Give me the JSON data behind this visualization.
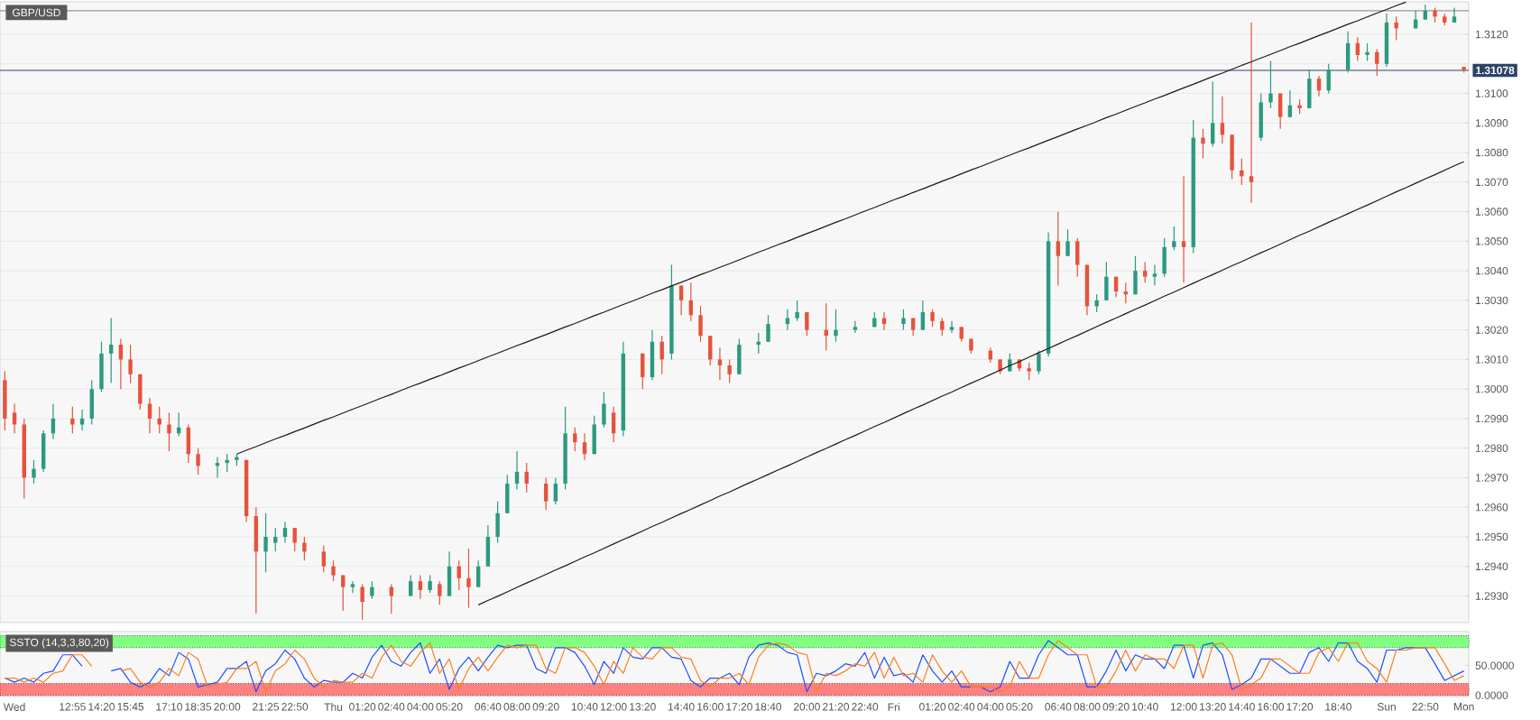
{
  "chart_data": [
    {
      "type": "candlestick",
      "title": "GBP/USD",
      "categories": [
        null,
        null,
        null,
        null,
        null,
        null,
        null,
        null,
        null,
        null,
        null,
        null,
        null,
        null,
        null,
        null,
        null,
        null,
        null,
        null,
        null,
        null,
        null,
        null,
        null,
        null,
        null,
        null,
        null,
        null,
        null,
        null,
        null,
        null,
        null,
        null,
        null,
        null,
        null,
        null,
        null,
        null,
        null,
        null,
        null,
        null,
        null,
        null,
        null,
        null,
        null,
        null,
        null,
        null,
        null,
        null,
        null,
        null,
        null,
        null,
        null,
        null,
        null,
        null,
        null,
        null,
        null,
        null,
        null,
        null,
        null,
        null,
        null,
        null,
        null,
        null,
        null,
        null,
        null,
        null,
        null,
        null,
        null,
        null,
        null,
        null,
        null,
        null,
        null,
        null,
        null,
        null,
        null,
        null,
        null,
        null,
        null,
        null,
        null,
        null,
        null,
        null,
        null,
        null,
        null,
        null,
        null,
        null,
        null,
        null,
        null,
        null,
        null,
        null,
        null,
        null,
        null,
        null,
        null,
        null,
        null,
        null,
        null,
        null,
        null,
        null,
        null,
        null,
        null,
        null,
        null,
        null,
        null,
        null,
        null,
        null,
        null,
        null,
        null,
        null,
        null,
        null,
        null,
        null,
        null,
        null,
        null,
        null,
        null,
        null,
        null,
        null
      ],
      "ohlc": [
        [
          1.3003,
          1.3006,
          1.2986,
          1.299
        ],
        [
          1.2992,
          1.2995,
          1.2985,
          1.2988
        ],
        [
          1.2988,
          1.299,
          1.2963,
          1.297
        ],
        [
          1.297,
          1.2976,
          1.2968,
          1.2973
        ],
        [
          1.2973,
          1.2986,
          1.2972,
          1.2985
        ],
        [
          1.2985,
          1.2995,
          1.2983,
          1.299
        ],
        null,
        [
          1.299,
          1.2994,
          1.2985,
          1.2988
        ],
        [
          1.2988,
          1.2993,
          1.2986,
          1.299
        ],
        [
          1.299,
          1.3003,
          1.2988,
          1.3
        ],
        [
          1.3,
          1.3016,
          1.2999,
          1.3012
        ],
        [
          1.3012,
          1.3024,
          1.3002,
          1.3015
        ],
        [
          1.3015,
          1.3017,
          1.3,
          1.301
        ],
        [
          1.301,
          1.3015,
          1.3002,
          1.3005
        ],
        [
          1.3005,
          1.3005,
          1.2993,
          1.2995
        ],
        [
          1.2995,
          1.2997,
          1.2985,
          1.299
        ],
        [
          1.299,
          1.2994,
          1.2985,
          1.2988
        ],
        [
          1.2988,
          1.2992,
          1.2979,
          1.2985
        ],
        [
          1.2985,
          1.2992,
          1.2984,
          1.2987
        ],
        [
          1.2987,
          1.2988,
          1.2975,
          1.2978
        ],
        [
          1.2978,
          1.298,
          1.2971,
          1.2974
        ],
        null,
        [
          1.2974,
          1.2977,
          1.297,
          1.2975
        ],
        [
          1.2975,
          1.2978,
          1.2972,
          1.2976
        ],
        [
          1.2976,
          1.2978,
          1.2974,
          1.2977
        ],
        [
          1.2976,
          1.2976,
          1.2955,
          1.2957
        ],
        [
          1.2957,
          1.296,
          1.2924,
          1.2945
        ],
        [
          1.2945,
          1.2958,
          1.2938,
          1.295
        ],
        [
          1.2948,
          1.2953,
          1.2945,
          1.295
        ],
        [
          1.295,
          1.2955,
          1.2948,
          1.2953
        ],
        [
          1.2953,
          1.2953,
          1.2945,
          1.2948
        ],
        [
          1.2948,
          1.295,
          1.2942,
          1.2945
        ],
        null,
        [
          1.2945,
          1.2947,
          1.2938,
          1.294
        ],
        [
          1.294,
          1.2942,
          1.2935,
          1.2937
        ],
        [
          1.2937,
          1.2937,
          1.2925,
          1.2933
        ],
        [
          1.2933,
          1.2935,
          1.2931,
          1.2934
        ],
        [
          1.2933,
          1.2934,
          1.2922,
          1.2928
        ],
        [
          1.293,
          1.2935,
          1.2929,
          1.2933
        ],
        null,
        [
          1.2933,
          1.2934,
          1.2924,
          1.293
        ],
        null,
        [
          1.293,
          1.2937,
          1.293,
          1.2935
        ],
        [
          1.2935,
          1.2937,
          1.2929,
          1.2932
        ],
        [
          1.2932,
          1.2937,
          1.2931,
          1.2935
        ],
        [
          1.2934,
          1.2935,
          1.2927,
          1.293
        ],
        [
          1.293,
          1.2945,
          1.293,
          1.294
        ],
        [
          1.294,
          1.2942,
          1.2932,
          1.2936
        ],
        [
          1.2936,
          1.2946,
          1.2926,
          1.2933
        ],
        [
          1.2933,
          1.2942,
          1.2933,
          1.294
        ],
        [
          1.294,
          1.2954,
          1.294,
          1.295
        ],
        [
          1.295,
          1.2962,
          1.2948,
          1.2958
        ],
        [
          1.2958,
          1.2971,
          1.2958,
          1.2968
        ],
        [
          1.2968,
          1.2979,
          1.2966,
          1.2972
        ],
        [
          1.2972,
          1.2975,
          1.2965,
          1.2968
        ],
        null,
        [
          1.2968,
          1.297,
          1.2959,
          1.2962
        ],
        [
          1.2962,
          1.297,
          1.2961,
          1.2968
        ],
        [
          1.2968,
          1.2994,
          1.2966,
          1.2985
        ],
        [
          1.2985,
          1.2987,
          1.2979,
          1.2982
        ],
        [
          1.2982,
          1.2985,
          1.2976,
          1.2978
        ],
        [
          1.2978,
          1.2991,
          1.2978,
          1.2988
        ],
        [
          1.2988,
          1.2999,
          1.2987,
          1.2995
        ],
        [
          1.2992,
          1.2994,
          1.2982,
          1.2985
        ],
        [
          1.2986,
          1.3016,
          1.2984,
          1.3012
        ],
        null,
        [
          1.3012,
          1.3012,
          1.3,
          1.3004
        ],
        [
          1.3004,
          1.302,
          1.3003,
          1.3016
        ],
        [
          1.3016,
          1.3018,
          1.3005,
          1.301
        ],
        [
          1.3012,
          1.3042,
          1.301,
          1.3035
        ],
        [
          1.3035,
          1.3035,
          1.3025,
          1.303
        ],
        [
          1.303,
          1.3036,
          1.3023,
          1.3025
        ],
        [
          1.3025,
          1.3028,
          1.3016,
          1.3018
        ],
        [
          1.3018,
          1.3018,
          1.3008,
          1.301
        ],
        [
          1.301,
          1.3014,
          1.3003,
          1.3008
        ],
        [
          1.3008,
          1.301,
          1.3002,
          1.3005
        ],
        [
          1.3005,
          1.3017,
          1.3005,
          1.3015
        ],
        null,
        [
          1.3015,
          1.3019,
          1.3012,
          1.3016
        ],
        [
          1.3016,
          1.3025,
          1.3016,
          1.3022
        ],
        null,
        [
          1.3022,
          1.3027,
          1.302,
          1.3024
        ],
        [
          1.3024,
          1.303,
          1.3023,
          1.3026
        ],
        [
          1.3026,
          1.3026,
          1.3018,
          1.302
        ],
        null,
        [
          1.302,
          1.3029,
          1.3013,
          1.3018
        ],
        [
          1.3018,
          1.3027,
          1.3016,
          1.302
        ],
        null,
        [
          1.302,
          1.3023,
          1.3019,
          1.3021
        ],
        null,
        [
          1.3021,
          1.3026,
          1.3021,
          1.3024
        ],
        [
          1.3024,
          1.3026,
          1.302,
          1.3022
        ],
        null,
        [
          1.3022,
          1.3027,
          1.302,
          1.3024
        ],
        [
          1.3024,
          1.3024,
          1.3018,
          1.302
        ],
        [
          1.302,
          1.303,
          1.302,
          1.3026
        ],
        [
          1.3026,
          1.3027,
          1.3021,
          1.3023
        ],
        [
          1.3023,
          1.3024,
          1.3018,
          1.302
        ],
        [
          1.302,
          1.3023,
          1.3019,
          1.3021
        ],
        [
          1.3021,
          1.3021,
          1.3016,
          1.3017
        ],
        [
          1.3017,
          1.3017,
          1.3012,
          1.3013
        ],
        null,
        [
          1.3013,
          1.3014,
          1.3009,
          1.301
        ],
        [
          1.301,
          1.301,
          1.3005,
          1.3006
        ],
        [
          1.3006,
          1.3012,
          1.3006,
          1.301
        ],
        [
          1.301,
          1.301,
          1.3006,
          1.3007
        ],
        [
          1.3007,
          1.3009,
          1.3003,
          1.3006
        ],
        [
          1.3006,
          1.3013,
          1.3005,
          1.3012
        ],
        [
          1.3012,
          1.3053,
          1.3011,
          1.305
        ],
        [
          1.305,
          1.306,
          1.3035,
          1.3045
        ],
        [
          1.3045,
          1.3054,
          1.3045,
          1.305
        ],
        [
          1.305,
          1.3051,
          1.3038,
          1.3042
        ],
        [
          1.3042,
          1.3042,
          1.3025,
          1.3028
        ],
        [
          1.3028,
          1.3032,
          1.3026,
          1.303
        ],
        [
          1.303,
          1.3043,
          1.303,
          1.3038
        ],
        [
          1.3038,
          1.3038,
          1.3031,
          1.3033
        ],
        [
          1.3033,
          1.3036,
          1.3029,
          1.3032
        ],
        [
          1.3032,
          1.3045,
          1.3032,
          1.304
        ],
        [
          1.304,
          1.3043,
          1.3036,
          1.3038
        ],
        [
          1.3038,
          1.3042,
          1.3035,
          1.3039
        ],
        [
          1.3039,
          1.3051,
          1.3038,
          1.3048
        ],
        [
          1.3048,
          1.3055,
          1.3047,
          1.305
        ],
        [
          1.305,
          1.3072,
          1.3036,
          1.3048
        ],
        [
          1.3048,
          1.3091,
          1.3046,
          1.3085
        ],
        [
          1.3085,
          1.3088,
          1.3078,
          1.3083
        ],
        [
          1.3083,
          1.3104,
          1.3082,
          1.309
        ],
        [
          1.309,
          1.3099,
          1.3083,
          1.3086
        ],
        [
          1.3086,
          1.3086,
          1.3071,
          1.3074
        ],
        [
          1.3074,
          1.3078,
          1.3069,
          1.3072
        ],
        [
          1.3072,
          1.3124,
          1.3063,
          1.307
        ],
        [
          1.3085,
          1.31,
          1.3084,
          1.3097
        ],
        [
          1.3097,
          1.3111,
          1.3095,
          1.31
        ],
        [
          1.31,
          1.31,
          1.3088,
          1.3092
        ],
        [
          1.3092,
          1.3101,
          1.3092,
          1.3096
        ],
        [
          1.3096,
          1.3098,
          1.3093,
          1.3095
        ],
        [
          1.3095,
          1.3108,
          1.3095,
          1.3105
        ],
        [
          1.3105,
          1.3106,
          1.3099,
          1.3101
        ],
        [
          1.3101,
          1.311,
          1.31,
          1.3108
        ],
        null,
        [
          1.3108,
          1.3121,
          1.3107,
          1.3117
        ],
        [
          1.3117,
          1.3119,
          1.3111,
          1.3113
        ],
        [
          1.3113,
          1.3117,
          1.3111,
          1.3114
        ],
        [
          1.3114,
          1.3115,
          1.3106,
          1.311
        ],
        [
          1.311,
          1.3127,
          1.3109,
          1.3124
        ],
        [
          1.3124,
          1.3126,
          1.3118,
          1.3122
        ],
        null,
        [
          1.3122,
          1.3128,
          1.3122,
          1.3125
        ],
        [
          1.3125,
          1.313,
          1.3125,
          1.3128
        ],
        [
          1.3128,
          1.3129,
          1.3124,
          1.3126
        ],
        [
          1.3126,
          1.3127,
          1.3123,
          1.3124
        ],
        [
          1.3124,
          1.3129,
          1.3124,
          1.3126
        ],
        [
          1.3109,
          1.3109,
          1.3107,
          1.3108
        ]
      ],
      "colors": [
        "#e5533d",
        "#e5533d",
        "#e5533d",
        "#2b9a7f",
        "#2b9a7f",
        "#2b9a7f",
        null,
        "#e5533d",
        "#2b9a7f",
        "#2b9a7f",
        "#2b9a7f",
        "#2b9a7f",
        "#e5533d",
        "#e5533d",
        "#e5533d",
        "#e5533d",
        "#e5533d",
        "#e5533d",
        "#2b9a7f",
        "#e5533d",
        "#e5533d",
        null,
        "#2b9a7f",
        "#2b9a7f",
        "#2b9a7f",
        "#e5533d",
        "#e5533d",
        "#2b9a7f",
        "#2b9a7f",
        "#2b9a7f",
        "#e5533d",
        "#e5533d",
        null,
        "#e5533d",
        "#e5533d",
        "#e5533d",
        "#2b9a7f",
        "#e5533d",
        "#2b9a7f",
        null,
        "#e5533d",
        null,
        "#2b9a7f",
        "#e5533d",
        "#2b9a7f",
        "#e5533d",
        "#2b9a7f",
        "#e5533d",
        "#e5533d",
        "#2b9a7f",
        "#2b9a7f",
        "#2b9a7f",
        "#2b9a7f",
        "#2b9a7f",
        "#e5533d",
        null,
        "#e5533d",
        "#2b9a7f",
        "#2b9a7f",
        "#e5533d",
        "#e5533d",
        "#2b9a7f",
        "#2b9a7f",
        "#e5533d",
        "#2b9a7f",
        null,
        "#e5533d",
        "#2b9a7f",
        "#e5533d",
        "#2b9a7f",
        "#e5533d",
        "#e5533d",
        "#e5533d",
        "#e5533d",
        "#e5533d",
        "#e5533d",
        "#2b9a7f",
        null,
        "#2b9a7f",
        "#2b9a7f",
        null,
        "#2b9a7f",
        "#2b9a7f",
        "#e5533d",
        null,
        "#e5533d",
        "#2b9a7f",
        null,
        "#2b9a7f",
        null,
        "#2b9a7f",
        "#e5533d",
        null,
        "#2b9a7f",
        "#e5533d",
        "#2b9a7f",
        "#e5533d",
        "#e5533d",
        "#2b9a7f",
        "#e5533d",
        "#e5533d",
        null,
        "#e5533d",
        "#e5533d",
        "#2b9a7f",
        "#e5533d",
        "#e5533d",
        "#2b9a7f",
        "#2b9a7f",
        "#e5533d",
        "#2b9a7f",
        "#e5533d",
        "#e5533d",
        "#2b9a7f",
        "#2b9a7f",
        "#e5533d",
        "#e5533d",
        "#2b9a7f",
        "#e5533d",
        "#2b9a7f",
        "#2b9a7f",
        "#2b9a7f",
        "#e5533d",
        "#2b9a7f",
        "#e5533d",
        "#2b9a7f",
        "#e5533d",
        "#e5533d",
        "#e5533d",
        "#e5533d",
        "#2b9a7f",
        "#2b9a7f",
        "#e5533d",
        "#2b9a7f",
        "#e5533d",
        "#2b9a7f",
        "#e5533d",
        "#2b9a7f",
        null,
        "#2b9a7f",
        "#e5533d",
        "#2b9a7f",
        "#e5533d",
        "#2b9a7f",
        "#e5533d",
        null,
        "#2b9a7f",
        "#2b9a7f",
        "#e5533d",
        "#e5533d",
        "#2b9a7f",
        "#e5533d"
      ],
      "series": [
        {
          "type": "line",
          "color": "#1a1a1a",
          "values": [
            null,
            null,
            null,
            null,
            null,
            null,
            null,
            null,
            null,
            null,
            null,
            null,
            null,
            null,
            null,
            null,
            null,
            null,
            null,
            null,
            null,
            null,
            null,
            null,
            1.2978,
            1.29793,
            1.29805,
            1.29818,
            1.29831,
            1.29843,
            1.29856,
            1.29868,
            1.29881,
            1.29894,
            1.29906,
            1.29919,
            1.29932,
            1.29944,
            1.29957,
            1.2997,
            1.29982,
            1.29995,
            1.30008,
            1.3002,
            1.30033,
            1.30045,
            1.30058,
            1.30071,
            1.30083,
            1.30096,
            1.30109,
            1.30121,
            1.30134,
            1.30147,
            1.30159,
            1.30172,
            1.30184,
            1.30197,
            1.3021,
            1.30222,
            1.30235,
            1.30248,
            1.3026,
            1.30273,
            1.30286,
            1.30298,
            1.30311,
            1.30324,
            1.30336,
            1.30349,
            1.30361,
            1.30374,
            1.30387,
            1.30399,
            1.30412,
            1.30424,
            1.30437,
            1.3045,
            1.30463,
            1.30475,
            1.30488,
            1.305,
            1.30513,
            1.30526,
            1.30538,
            1.30551,
            1.30564,
            1.30576,
            1.30589,
            1.30602,
            1.30614,
            1.30627,
            1.3064,
            1.30652,
            1.30665,
            1.30677,
            1.3069,
            1.30703,
            1.30715,
            1.30728,
            1.30741,
            1.30753,
            1.30766,
            1.30779,
            1.30791,
            1.30804,
            1.30816,
            1.30829,
            1.30842,
            1.30854,
            1.30867,
            1.3088,
            1.30892,
            1.30905,
            1.30918,
            1.3093,
            1.30943,
            1.30956,
            1.30968,
            1.30981,
            1.30993,
            1.31006,
            1.31019,
            1.31031,
            1.31044,
            1.31057,
            1.31069,
            1.31082,
            1.31095,
            1.31107,
            1.3112,
            1.31132,
            1.31145,
            1.31158,
            1.3117,
            1.31183,
            1.31196,
            1.31208,
            1.31221,
            1.31234,
            1.31246,
            1.31259,
            1.31272,
            1.31284,
            1.31297,
            1.31309,
            null,
            null,
            null,
            null,
            null,
            null
          ]
        },
        {
          "type": "line",
          "color": "#1a1a1a",
          "values": [
            null,
            null,
            null,
            null,
            null,
            null,
            null,
            null,
            null,
            null,
            null,
            null,
            null,
            null,
            null,
            null,
            null,
            null,
            null,
            null,
            null,
            null,
            null,
            null,
            null,
            null,
            null,
            null,
            null,
            null,
            null,
            null,
            null,
            null,
            null,
            null,
            null,
            null,
            null,
            null,
            null,
            null,
            null,
            null,
            null,
            null,
            null,
            null,
            null,
            1.2927,
            1.29285,
            1.29299,
            1.29314,
            1.29329,
            1.29344,
            1.29358,
            1.29373,
            1.29388,
            1.29402,
            1.29417,
            1.29432,
            1.29446,
            1.29461,
            1.29476,
            1.29491,
            1.29505,
            1.2952,
            1.29535,
            1.29549,
            1.29564,
            1.29579,
            1.29593,
            1.29608,
            1.29623,
            1.29638,
            1.29652,
            1.29667,
            1.29682,
            1.29696,
            1.29711,
            1.29726,
            1.2974,
            1.29755,
            1.2977,
            1.29785,
            1.29799,
            1.29814,
            1.29829,
            1.29843,
            1.29858,
            1.29873,
            1.29887,
            1.29902,
            1.29917,
            1.29932,
            1.29946,
            1.29961,
            1.29976,
            1.2999,
            1.30005,
            1.3002,
            1.30034,
            1.30049,
            1.30064,
            1.30079,
            1.30093,
            1.30108,
            1.30123,
            1.30137,
            1.30152,
            1.30167,
            1.30181,
            1.30196,
            1.30211,
            1.30226,
            1.3024,
            1.30255,
            1.3027,
            1.30284,
            1.30299,
            1.30314,
            1.30328,
            1.30343,
            1.30358,
            1.30373,
            1.30387,
            1.30402,
            1.30417,
            1.30431,
            1.30446,
            1.30461,
            1.30475,
            1.3049,
            1.30505,
            1.3052,
            1.30534,
            1.30549,
            1.30564,
            1.30578,
            1.30593,
            1.30608,
            1.30622,
            1.30637,
            1.30652,
            1.30667,
            1.30681,
            1.30696,
            1.30711,
            1.30725,
            1.3074,
            1.30755,
            1.30769
          ]
        }
      ],
      "ylim": [
        1.2921,
        1.3131
      ],
      "yticks": [
        {
          "value": 1.293,
          "label": "1.2930"
        },
        {
          "value": 1.294,
          "label": "1.2940"
        },
        {
          "value": 1.295,
          "label": "1.2950"
        },
        {
          "value": 1.296,
          "label": "1.2960"
        },
        {
          "value": 1.297,
          "label": "1.2970"
        },
        {
          "value": 1.298,
          "label": "1.2980"
        },
        {
          "value": 1.299,
          "label": "1.2990"
        },
        {
          "value": 1.3,
          "label": "1.3000"
        },
        {
          "value": 1.301,
          "label": "1.3010"
        },
        {
          "value": 1.302,
          "label": "1.3020"
        },
        {
          "value": 1.303,
          "label": "1.3030"
        },
        {
          "value": 1.304,
          "label": "1.3040"
        },
        {
          "value": 1.305,
          "label": "1.3050"
        },
        {
          "value": 1.306,
          "label": "1.3060"
        },
        {
          "value": 1.307,
          "label": "1.3070"
        },
        {
          "value": 1.308,
          "label": "1.3080"
        },
        {
          "value": 1.309,
          "label": "1.3090"
        },
        {
          "value": 1.31,
          "label": "1.3100"
        },
        {
          "value": 1.311,
          "label": null
        },
        {
          "value": 1.312,
          "label": "1.3120"
        }
      ],
      "grid": "y",
      "tick_labels": "y",
      "ref_lines": [
        {
          "axis": "y",
          "value": 1.3128,
          "color": "#999999"
        },
        {
          "axis": "y",
          "value": 1.31078,
          "label": "1.31078",
          "color": "#2c4466"
        }
      ]
    },
    {
      "type": "line",
      "title": "SSTO (14,3,3,80,20)",
      "categories": [
        null,
        "Wed",
        null,
        null,
        null,
        null,
        null,
        "12:55",
        null,
        null,
        "14:20",
        null,
        null,
        "15:45",
        null,
        null,
        null,
        "17:10",
        null,
        null,
        "18:35",
        null,
        null,
        "20:00",
        null,
        null,
        null,
        "21:25",
        null,
        null,
        "22:50",
        null,
        null,
        null,
        "Thu",
        null,
        null,
        "01:20",
        null,
        null,
        "02:40",
        null,
        null,
        "04:00",
        null,
        null,
        "05:20",
        null,
        null,
        null,
        "06:40",
        null,
        null,
        "08:00",
        null,
        null,
        "09:20",
        null,
        null,
        null,
        "10:40",
        null,
        null,
        "12:00",
        null,
        null,
        "13:20",
        null,
        null,
        null,
        "14:40",
        null,
        null,
        "16:00",
        null,
        null,
        "17:20",
        null,
        null,
        "18:40",
        null,
        null,
        null,
        "20:00",
        null,
        null,
        "21:20",
        null,
        null,
        "22:40",
        null,
        null,
        "Fri",
        null,
        null,
        null,
        "01:20",
        null,
        null,
        "02:40",
        null,
        null,
        "04:00",
        null,
        null,
        "05:20",
        null,
        null,
        null,
        "06:40",
        null,
        null,
        "08:00",
        null,
        null,
        "09:20",
        null,
        null,
        "10:40",
        null,
        null,
        null,
        "12:00",
        null,
        null,
        "13:20",
        null,
        null,
        "14:40",
        null,
        null,
        "16:00",
        null,
        null,
        "17:20",
        null,
        null,
        null,
        "18:40",
        null,
        null,
        null,
        null,
        "Sun",
        null,
        null,
        null,
        "22:50",
        null,
        null,
        null,
        "Mon"
      ],
      "series": [
        {
          "color": "#1f4fff",
          "values": [
            29,
            22,
            29,
            22,
            37,
            41,
            68,
            68,
            49,
            null,
            null,
            41,
            45,
            22,
            14,
            22,
            45,
            33,
            72,
            61,
            14,
            18,
            22,
            45,
            45,
            57,
            6,
            41,
            53,
            76,
            61,
            29,
            14,
            25,
            22,
            22,
            37,
            29,
            64,
            84,
            57,
            49,
            72,
            88,
            37,
            61,
            10,
            45,
            64,
            41,
            64,
            84,
            80,
            84,
            84,
            45,
            37,
            80,
            80,
            72,
            49,
            18,
            57,
            37,
            80,
            64,
            61,
            80,
            80,
            64,
            61,
            25,
            14,
            29,
            29,
            37,
            18,
            64,
            84,
            88,
            84,
            72,
            68,
            6,
            37,
            33,
            41,
            53,
            49,
            72,
            29,
            64,
            33,
            37,
            22,
            68,
            41,
            22,
            41,
            14,
            14,
            14,
            6,
            14,
            57,
            29,
            29,
            68,
            92,
            80,
            68,
            68,
            14,
            14,
            41,
            76,
            41,
            68,
            61,
            61,
            45,
            84,
            84,
            29,
            84,
            88,
            68,
            10,
            18,
            29,
            61,
            61,
            49,
            37,
            37,
            72,
            80,
            57,
            88,
            88,
            57,
            45,
            22,
            76,
            76,
            80,
            80,
            80,
            53,
            25,
            33,
            41
          ]
        },
        {
          "color": "#ff7f1f",
          "values": [
            29,
            29,
            22,
            29,
            22,
            37,
            41,
            68,
            68,
            49,
            null,
            null,
            41,
            45,
            22,
            14,
            22,
            45,
            33,
            72,
            61,
            14,
            18,
            22,
            45,
            45,
            57,
            6,
            41,
            53,
            76,
            61,
            29,
            14,
            25,
            22,
            22,
            37,
            29,
            64,
            84,
            57,
            49,
            72,
            88,
            37,
            61,
            10,
            45,
            64,
            41,
            64,
            84,
            80,
            84,
            84,
            45,
            37,
            80,
            80,
            72,
            49,
            18,
            57,
            37,
            80,
            64,
            61,
            80,
            80,
            64,
            61,
            25,
            14,
            29,
            29,
            37,
            18,
            64,
            84,
            88,
            84,
            72,
            68,
            6,
            37,
            33,
            41,
            53,
            49,
            72,
            29,
            64,
            33,
            37,
            22,
            68,
            41,
            22,
            41,
            14,
            14,
            14,
            6,
            14,
            57,
            29,
            29,
            68,
            92,
            80,
            68,
            68,
            14,
            14,
            41,
            76,
            41,
            68,
            61,
            61,
            45,
            84,
            84,
            29,
            84,
            88,
            68,
            10,
            18,
            29,
            61,
            61,
            49,
            37,
            37,
            72,
            80,
            57,
            88,
            88,
            57,
            45,
            22,
            76,
            76,
            80,
            80,
            80,
            53,
            25,
            33
          ]
        }
      ],
      "ylim": [
        -2,
        107
      ],
      "yticks": [
        {
          "value": 0,
          "label": "0.0000"
        },
        {
          "value": 50,
          "label": "50.0000"
        }
      ],
      "bands": [
        {
          "axis": "y",
          "from": 80,
          "to": 100,
          "color": "#80ff80"
        },
        {
          "axis": "y",
          "from": 0,
          "to": 20,
          "color": "#ff8080"
        }
      ]
    }
  ]
}
